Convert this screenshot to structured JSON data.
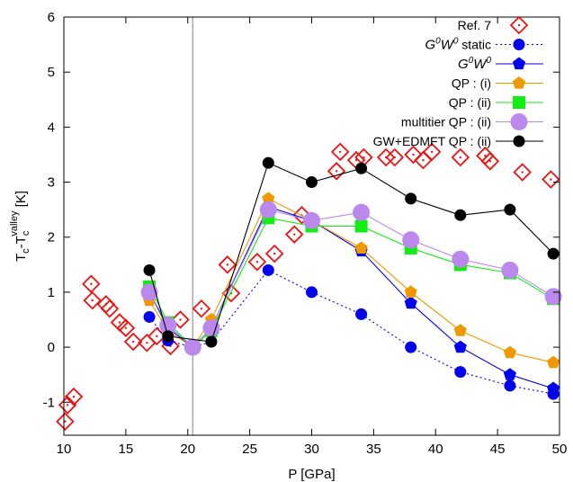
{
  "chart_data": {
    "type": "line",
    "xlabel": "P [GPa]",
    "ylabel": {
      "main": "T",
      "sub1": "c",
      "dash": "-T",
      "sub2": "c",
      "sup2": "valley",
      "unit": " [K]"
    },
    "xlim": [
      10,
      50
    ],
    "ylim": [
      -1.6,
      6
    ],
    "xticks": [
      10,
      15,
      20,
      25,
      30,
      35,
      40,
      45,
      50
    ],
    "yticks": [
      -1,
      0,
      1,
      2,
      3,
      4,
      5,
      6
    ],
    "vline": 20.4,
    "grid": false,
    "legend_position": "top-right",
    "series": [
      {
        "name": "Ref. 7",
        "color": "#ee1111",
        "marker": "diamond-dot",
        "line": "none",
        "points": [
          [
            10.1,
            -1.35
          ],
          [
            10.3,
            -1.05
          ],
          [
            10.8,
            -0.9
          ],
          [
            12.2,
            1.15
          ],
          [
            12.3,
            0.85
          ],
          [
            13.4,
            0.78
          ],
          [
            13.7,
            0.7
          ],
          [
            14.5,
            0.45
          ],
          [
            15.0,
            0.35
          ],
          [
            15.6,
            0.1
          ],
          [
            16.7,
            0.08
          ],
          [
            17.5,
            0.2
          ],
          [
            18.6,
            0.02
          ],
          [
            19.4,
            0.5
          ],
          [
            21.1,
            0.7
          ],
          [
            23.2,
            1.5
          ],
          [
            23.5,
            0.98
          ],
          [
            25.6,
            1.55
          ],
          [
            27.0,
            1.7
          ],
          [
            28.6,
            2.05
          ],
          [
            29.2,
            2.4
          ],
          [
            32.0,
            3.2
          ],
          [
            32.3,
            3.55
          ],
          [
            33.6,
            3.4
          ],
          [
            34.2,
            3.45
          ],
          [
            36.0,
            3.45
          ],
          [
            36.7,
            3.45
          ],
          [
            38.2,
            3.5
          ],
          [
            39.0,
            3.4
          ],
          [
            39.7,
            3.55
          ],
          [
            42.0,
            3.45
          ],
          [
            44.0,
            3.48
          ],
          [
            44.4,
            3.38
          ],
          [
            47.0,
            3.18
          ],
          [
            49.3,
            3.05
          ]
        ]
      },
      {
        "name": "G0W0 static",
        "color": "#0000ee",
        "marker": "circle",
        "line": "dotted",
        "points": [
          [
            16.9,
            0.55
          ],
          [
            18.4,
            0.12
          ],
          [
            20.4,
            0.0
          ],
          [
            21.9,
            0.1
          ],
          [
            26.5,
            1.4
          ],
          [
            30.0,
            1.0
          ],
          [
            34.0,
            0.6
          ],
          [
            38.0,
            0.0
          ],
          [
            42.0,
            -0.45
          ],
          [
            46.0,
            -0.7
          ],
          [
            49.5,
            -0.85
          ]
        ]
      },
      {
        "name": "G0W0",
        "color": "#0000ee",
        "marker": "pentagon",
        "line": "solid",
        "points": [
          [
            16.9,
            1.0
          ],
          [
            18.4,
            0.35
          ],
          [
            20.4,
            0.0
          ],
          [
            21.9,
            0.35
          ],
          [
            26.5,
            2.55
          ],
          [
            30.0,
            2.3
          ],
          [
            34.0,
            1.75
          ],
          [
            38.0,
            0.8
          ],
          [
            42.0,
            0.0
          ],
          [
            46.0,
            -0.5
          ],
          [
            49.5,
            -0.75
          ]
        ]
      },
      {
        "name": "QP : (i)",
        "color": "#ee9900",
        "marker": "pentagon",
        "line": "solid",
        "points": [
          [
            16.9,
            0.85
          ],
          [
            18.4,
            0.3
          ],
          [
            20.4,
            0.0
          ],
          [
            21.9,
            0.5
          ],
          [
            26.5,
            2.7
          ],
          [
            30.0,
            2.3
          ],
          [
            34.0,
            1.8
          ],
          [
            38.0,
            1.0
          ],
          [
            42.0,
            0.3
          ],
          [
            46.0,
            -0.1
          ],
          [
            49.5,
            -0.28
          ]
        ]
      },
      {
        "name": "QP : (ii)",
        "color": "#11ee11",
        "marker": "square",
        "line": "solid",
        "points": [
          [
            16.9,
            1.1
          ],
          [
            18.4,
            0.45
          ],
          [
            20.4,
            0.0
          ],
          [
            21.9,
            0.3
          ],
          [
            26.5,
            2.35
          ],
          [
            30.0,
            2.2
          ],
          [
            34.0,
            2.2
          ],
          [
            38.0,
            1.8
          ],
          [
            42.0,
            1.5
          ],
          [
            46.0,
            1.35
          ],
          [
            49.5,
            0.88
          ]
        ]
      },
      {
        "name": "multitier QP : (ii)",
        "color": "#bb88ee",
        "marker": "big-circle",
        "line": "solid",
        "points": [
          [
            16.9,
            1.0
          ],
          [
            18.4,
            0.4
          ],
          [
            20.4,
            0.0
          ],
          [
            21.9,
            0.35
          ],
          [
            26.5,
            2.5
          ],
          [
            30.0,
            2.3
          ],
          [
            34.0,
            2.45
          ],
          [
            38.0,
            1.95
          ],
          [
            42.0,
            1.6
          ],
          [
            46.0,
            1.4
          ],
          [
            49.5,
            0.92
          ]
        ]
      },
      {
        "name": "GW+EDMFT QP : (ii)",
        "color": "#000000",
        "marker": "circle",
        "line": "solid",
        "points": [
          [
            16.9,
            1.4
          ],
          [
            18.4,
            0.2
          ],
          [
            21.9,
            0.1
          ],
          [
            26.5,
            3.35
          ],
          [
            30.0,
            3.0
          ],
          [
            34.0,
            3.25
          ],
          [
            38.0,
            2.7
          ],
          [
            42.0,
            2.4
          ],
          [
            46.0,
            2.5
          ],
          [
            49.5,
            1.7
          ]
        ]
      }
    ]
  },
  "legend": {
    "items": [
      {
        "text": "Ref. 7"
      },
      {
        "g": "G",
        "s1": "0",
        "w": "W",
        "s2": "0",
        "tail": " static"
      },
      {
        "g": "G",
        "s1": "0",
        "w": "W",
        "s2": "0",
        "tail": ""
      },
      {
        "text": "QP : (i)"
      },
      {
        "text": "QP : (ii)"
      },
      {
        "text": "multitier QP : (ii)"
      },
      {
        "text": "GW+EDMFT QP : (ii)"
      }
    ]
  }
}
